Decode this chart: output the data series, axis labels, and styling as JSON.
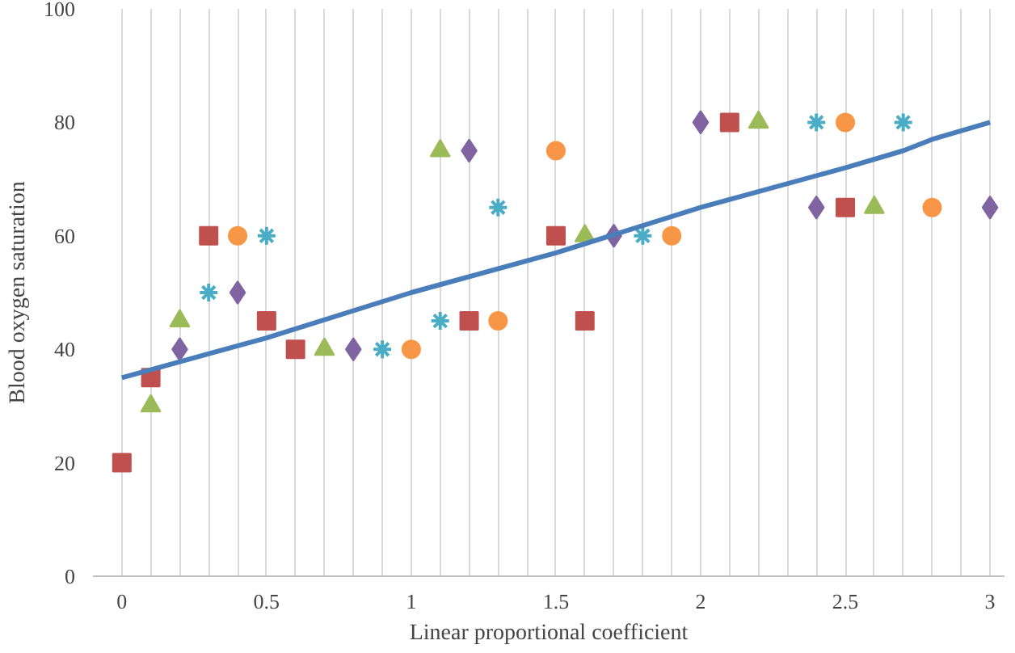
{
  "chart_data": {
    "type": "scatter",
    "xlabel": "Linear proportional coefficient",
    "ylabel": "Blood oxygen saturation",
    "xlim": [
      -0.1,
      3.05
    ],
    "ylim": [
      0,
      100
    ],
    "xticks": [
      0,
      {
        "value": 0.1,
        "label": null
      },
      {
        "value": 0.2,
        "label": null
      },
      {
        "value": 0.3,
        "label": null
      },
      {
        "value": 0.4,
        "label": null
      },
      0.5,
      {
        "value": 0.6,
        "label": null
      },
      {
        "value": 0.7,
        "label": null
      },
      {
        "value": 0.8,
        "label": null
      },
      {
        "value": 0.9,
        "label": null
      },
      1,
      {
        "value": 1.1,
        "label": null
      },
      {
        "value": 1.2,
        "label": null
      },
      {
        "value": 1.3,
        "label": null
      },
      {
        "value": 1.4,
        "label": null
      },
      1.5,
      {
        "value": 1.6,
        "label": null
      },
      {
        "value": 1.7,
        "label": null
      },
      {
        "value": 1.8,
        "label": null
      },
      {
        "value": 1.9,
        "label": null
      },
      2,
      {
        "value": 2.1,
        "label": null
      },
      {
        "value": 2.2,
        "label": null
      },
      {
        "value": 2.3,
        "label": null
      },
      {
        "value": 2.4,
        "label": null
      },
      2.5,
      {
        "value": 2.6,
        "label": null
      },
      {
        "value": 2.7,
        "label": null
      },
      {
        "value": 2.8,
        "label": null
      },
      {
        "value": 2.9,
        "label": null
      },
      3
    ],
    "yticks": [
      0,
      20,
      40,
      60,
      80,
      100
    ],
    "grid": "x",
    "series": [
      {
        "color": "#c0504d",
        "marker": "square",
        "x": [
          0,
          0.1,
          0.3,
          0.5,
          0.6,
          1.2,
          1.5,
          1.6,
          2.1,
          2.5
        ],
        "values": [
          20,
          35,
          60,
          45,
          40,
          45,
          60,
          45,
          80,
          65
        ]
      },
      {
        "color": "#9bbb59",
        "marker": "triangle",
        "x": [
          0.1,
          0.2,
          0.7,
          1.1,
          1.6,
          2.2,
          2.6
        ],
        "values": [
          30,
          45,
          40,
          75,
          60,
          80,
          65
        ]
      },
      {
        "color": "#f79646",
        "marker": "circle",
        "x": [
          0.4,
          1.0,
          1.3,
          1.5,
          1.9,
          2.5,
          2.8
        ],
        "values": [
          60,
          40,
          45,
          75,
          60,
          80,
          65
        ]
      },
      {
        "color": "#4bacc6",
        "marker": "cross",
        "x": [
          0.3,
          0.5,
          0.9,
          1.1,
          1.3,
          1.8,
          2.4,
          2.7
        ],
        "values": [
          50,
          60,
          40,
          45,
          65,
          60,
          80,
          80
        ]
      },
      {
        "color": "#8064a2",
        "marker": "diamond",
        "x": [
          0.2,
          0.4,
          0.8,
          1.2,
          1.7,
          2.0,
          2.4,
          3.0
        ],
        "values": [
          40,
          50,
          40,
          75,
          60,
          80,
          65,
          65
        ]
      },
      {
        "type": "line",
        "color": "#4a7ebb",
        "marker": "none",
        "x": [
          0,
          0.5,
          1,
          1.5,
          2,
          2.5,
          2.7,
          2.8,
          3
        ],
        "values": [
          35,
          42,
          50,
          57,
          65,
          72,
          75,
          77,
          80
        ]
      }
    ]
  }
}
